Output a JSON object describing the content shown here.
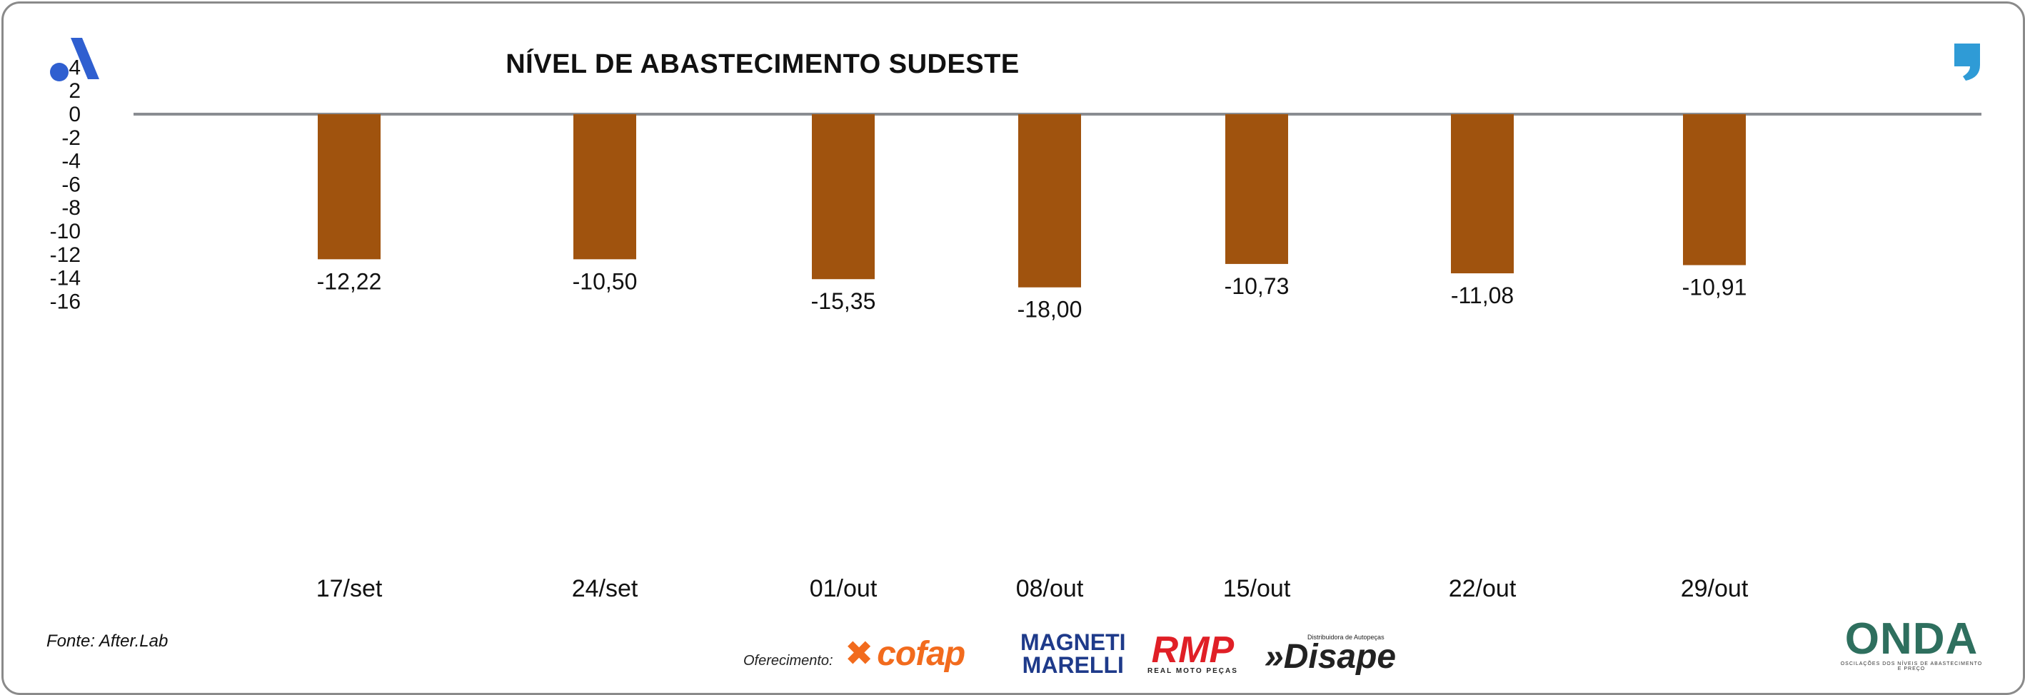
{
  "header": {
    "title": "NÍVEL DE ABASTECIMENTO SUDESTE",
    "left_icon": "brand-a-logo-icon",
    "right_icon": "quote-mark-icon"
  },
  "footer": {
    "source": "Fonte: After.Lab",
    "sponsor_label": "Oferecimento:",
    "sponsors": {
      "cofap": "cofap",
      "magneti_1": "MAGNETI",
      "magneti_2": "MARELLI",
      "rmp": "RMP",
      "rmp_sub": "REAL MOTO PEÇAS",
      "disape_sub": "Distribuidora de Autopeças",
      "disape": "Disape"
    },
    "onda": "ONDA",
    "onda_sub": "OSCILAÇÕES DOS NÍVEIS DE ABASTECIMENTO E PREÇO"
  },
  "colors": {
    "bar": "#a0530e",
    "zero_line": "#8a8d91",
    "brand_blue": "#2f5fd0",
    "quote_blue": "#2f9bd6"
  },
  "chart_data": {
    "type": "bar",
    "title": "NÍVEL DE ABASTECIMENTO SUDESTE",
    "xlabel": "",
    "ylabel": "",
    "categories": [
      "17/set",
      "24/set",
      "01/out",
      "08/out",
      "15/out",
      "22/out",
      "29/out"
    ],
    "values": [
      -12.22,
      -10.5,
      -15.35,
      -18.0,
      -10.73,
      -11.08,
      -10.91
    ],
    "value_labels": [
      "-12,22",
      "-10,50",
      "-15,35",
      "-18,00",
      "-10,73",
      "-11,08",
      "-10,91"
    ],
    "bar_depth": [
      -12.4,
      -12.4,
      -14.1,
      -14.8,
      -12.8,
      -13.6,
      -12.9
    ],
    "yticks": [
      "4",
      "2",
      "0",
      "-2",
      "-4",
      "-6",
      "-8",
      "-10",
      "-12",
      "-14",
      "-16"
    ],
    "ylim": [
      -16,
      4
    ],
    "grid": false,
    "legend": "none"
  }
}
